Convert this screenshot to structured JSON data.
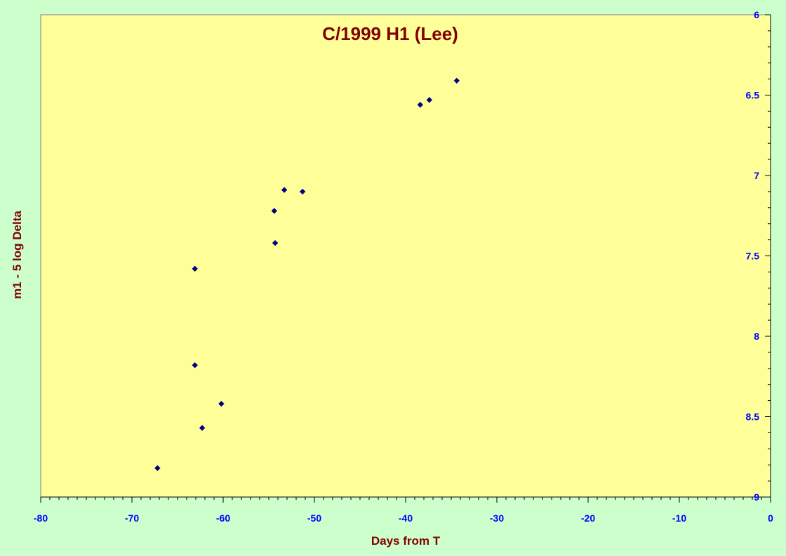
{
  "chart_data": {
    "type": "scatter",
    "title": "C/1999 H1 (Lee)",
    "xlabel": "Days from T",
    "ylabel": "m1 - 5 log Delta",
    "xlim": [
      -80,
      0
    ],
    "ylim": [
      6,
      9
    ],
    "y_inverted": true,
    "y_axis_side": "right",
    "x_ticks": [
      -80,
      -70,
      -60,
      -50,
      -40,
      -30,
      -20,
      -10,
      0
    ],
    "y_ticks": [
      6,
      6.5,
      7,
      7.5,
      8,
      8.5,
      9
    ],
    "x_tick_labels": [
      "-80",
      "-70",
      "-60",
      "-50",
      "-40",
      "-30",
      "-20",
      "-10",
      "0"
    ],
    "y_tick_labels": [
      "6",
      "6.5",
      "7",
      "7.5",
      "8",
      "8.5",
      "9"
    ],
    "grid": false,
    "marker": "diamond",
    "series": [
      {
        "color": "#000080",
        "points": [
          {
            "x": -67.2,
            "y": 8.82
          },
          {
            "x": -63.1,
            "y": 7.58
          },
          {
            "x": -63.1,
            "y": 8.18
          },
          {
            "x": -62.3,
            "y": 8.57
          },
          {
            "x": -60.2,
            "y": 8.42
          },
          {
            "x": -54.4,
            "y": 7.22
          },
          {
            "x": -54.3,
            "y": 7.42
          },
          {
            "x": -53.3,
            "y": 7.09
          },
          {
            "x": -51.3,
            "y": 7.1
          },
          {
            "x": -38.4,
            "y": 6.56
          },
          {
            "x": -37.4,
            "y": 6.53
          },
          {
            "x": -34.4,
            "y": 6.41
          }
        ]
      }
    ]
  },
  "colors": {
    "page_background": "#ccffcc",
    "plot_background": "#ffff99",
    "title_color": "#800000",
    "tick_color": "#0000ff",
    "marker_color": "#000080"
  }
}
